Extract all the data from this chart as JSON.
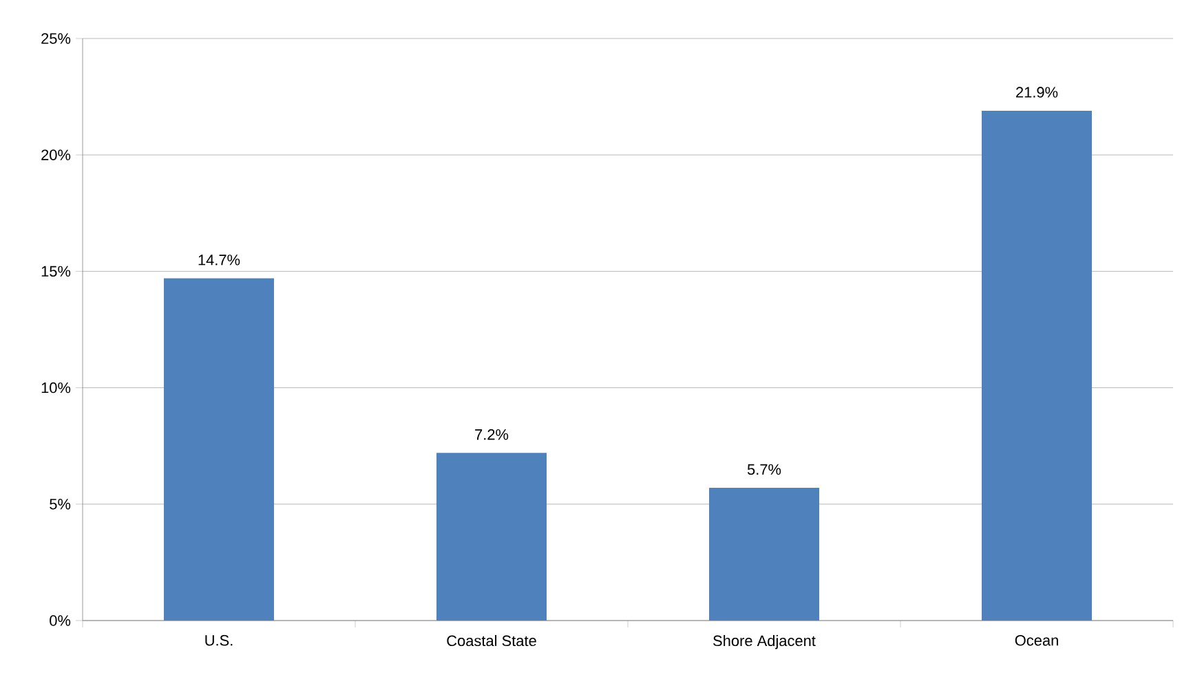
{
  "chart_data": {
    "type": "bar",
    "categories": [
      "U.S.",
      "Coastal State",
      "Shore Adjacent",
      "Ocean"
    ],
    "values": [
      14.7,
      7.2,
      5.7,
      21.9
    ],
    "value_labels": [
      "14.7%",
      "7.2%",
      "5.7%",
      "21.9%"
    ],
    "color": "#4f81bd",
    "ylim": [
      0,
      25
    ],
    "yticks": [
      {
        "value": 0,
        "label": "0%"
      },
      {
        "value": 5,
        "label": "5%"
      },
      {
        "value": 10,
        "label": "10%"
      },
      {
        "value": 15,
        "label": "15%"
      },
      {
        "value": 20,
        "label": "20%"
      },
      {
        "value": 25,
        "label": "25%"
      }
    ],
    "grid": "y"
  }
}
